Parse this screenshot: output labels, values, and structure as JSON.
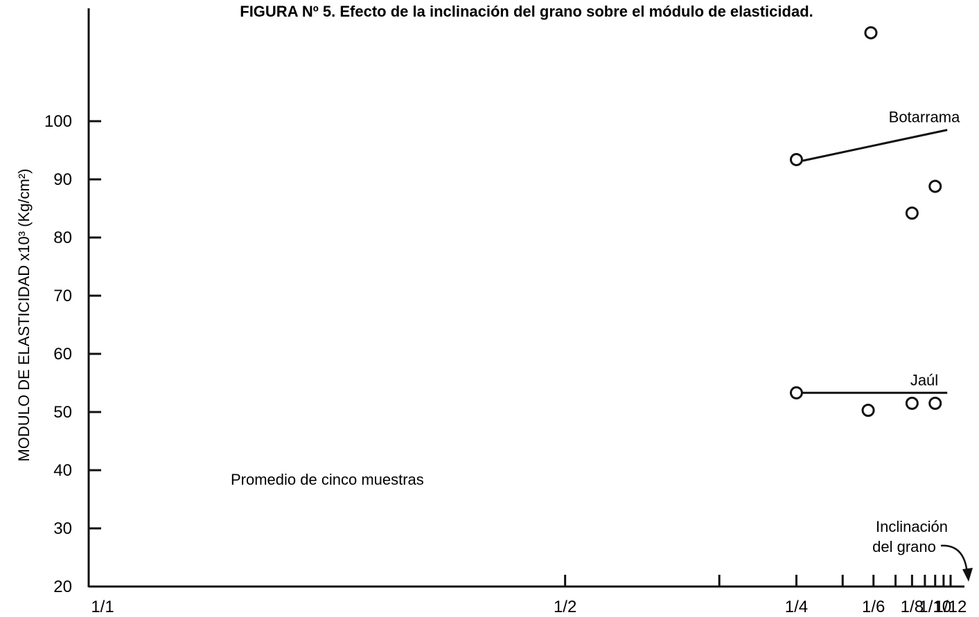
{
  "chart_data": {
    "type": "line",
    "title": "FIGURA Nº 5.  Efecto de la inclinación del grano sobre el módulo de elasticidad.",
    "ylabel": "MODULO DE ELASTICIDAD x10³ (Kg/cm²)",
    "xlabel": "Inclinación del grano",
    "xlabel_lines": [
      "Inclinación",
      "del grano"
    ],
    "annotation": "Promedio de cinco muestras",
    "x_scale": "reciprocal",
    "ylim": [
      20,
      100
    ],
    "yticks": [
      20,
      30,
      40,
      50,
      60,
      70,
      80,
      90,
      100
    ],
    "xtick_labels": [
      "1/1",
      "1/2",
      "1/4",
      "1/6",
      "1/8",
      "1/10",
      "1/12"
    ],
    "xtick_values": [
      1,
      2,
      4,
      6,
      8,
      10,
      12
    ],
    "xtick_minor_values": [
      3,
      5,
      7,
      9,
      11
    ],
    "series": [
      {
        "name": "Botarrama",
        "trend": {
          "x": [
            4,
            11.5
          ],
          "y": [
            93.2,
            98.5
          ]
        },
        "points": [
          {
            "x": 4,
            "y": 93.4
          },
          {
            "x": 5.9,
            "y": 115.2
          },
          {
            "x": 8,
            "y": 84.2
          },
          {
            "x": 10,
            "y": 88.8
          }
        ]
      },
      {
        "name": "Jaúl",
        "trend": {
          "x": [
            4,
            11.5
          ],
          "y": [
            53.3,
            53.3
          ]
        },
        "points": [
          {
            "x": 4,
            "y": 53.3
          },
          {
            "x": 5.8,
            "y": 50.3
          },
          {
            "x": 8,
            "y": 51.5
          },
          {
            "x": 10,
            "y": 51.5
          }
        ]
      }
    ]
  }
}
